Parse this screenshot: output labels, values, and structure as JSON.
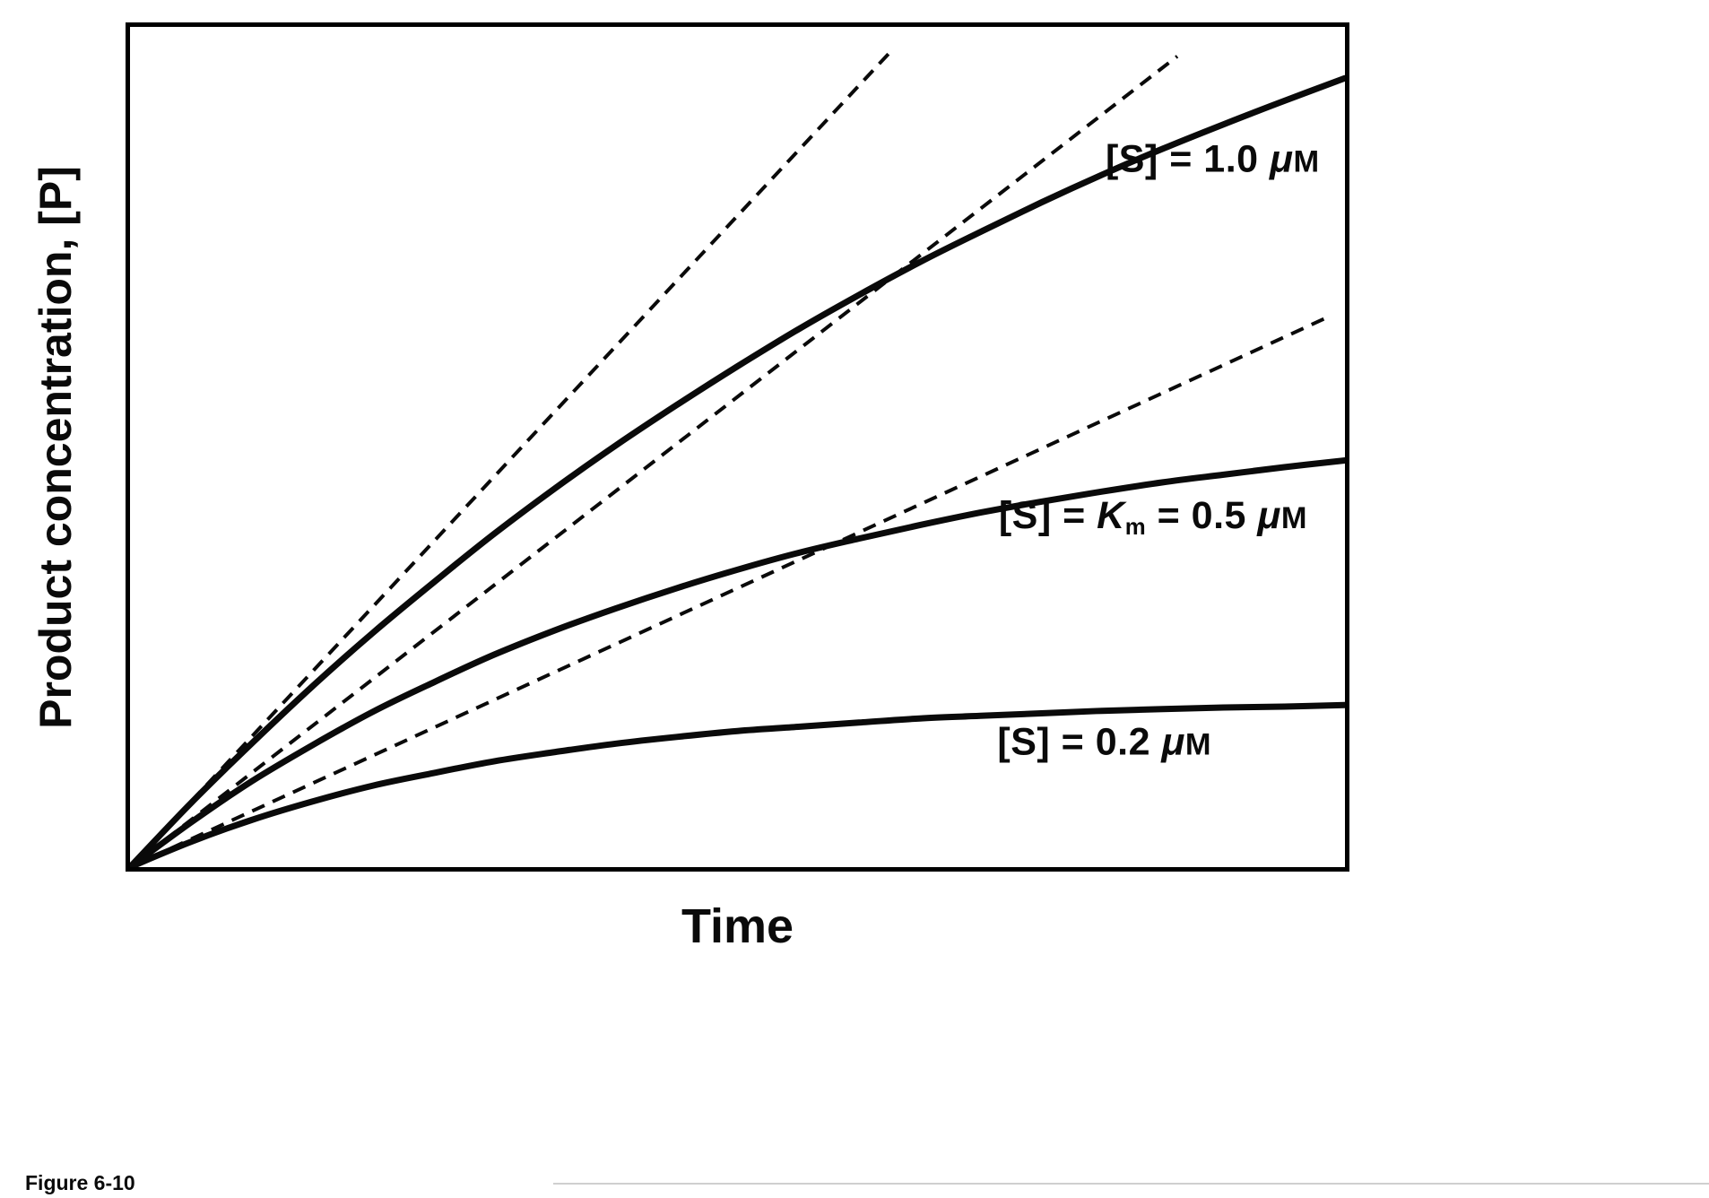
{
  "figure": {
    "caption": "Figure 6-10"
  },
  "chart_data": {
    "type": "line",
    "title": "",
    "xlabel": "Time",
    "ylabel": "Product concentration, [P]",
    "x_range": [
      0,
      1
    ],
    "y_range": [
      0,
      1
    ],
    "grid": false,
    "tick_labels": "none",
    "legend_position": "labels-on-plot",
    "series": [
      {
        "name": "[S] = 1.0 μM",
        "initial_rate": 1.55,
        "line_style": "solid",
        "label_pos": {
          "fx": 0.891,
          "fy": 0.158
        },
        "label_segments": [
          {
            "text": "[S] = 1.0 ",
            "style": "b"
          },
          {
            "text": "μ",
            "style": "bi"
          },
          {
            "text": "M",
            "style": "sc"
          }
        ],
        "points": [
          [
            0,
            0
          ],
          [
            0.05,
            0.076
          ],
          [
            0.1,
            0.147
          ],
          [
            0.15,
            0.215
          ],
          [
            0.2,
            0.279
          ],
          [
            0.25,
            0.339
          ],
          [
            0.3,
            0.397
          ],
          [
            0.35,
            0.451
          ],
          [
            0.4,
            0.502
          ],
          [
            0.45,
            0.55
          ],
          [
            0.5,
            0.596
          ],
          [
            0.55,
            0.64
          ],
          [
            0.6,
            0.681
          ],
          [
            0.65,
            0.72
          ],
          [
            0.7,
            0.756
          ],
          [
            0.75,
            0.791
          ],
          [
            0.8,
            0.824
          ],
          [
            0.85,
            0.855
          ],
          [
            0.9,
            0.884
          ],
          [
            0.95,
            0.912
          ],
          [
            1,
            0.939
          ]
        ]
      },
      {
        "name": "[S] = Km = 0.5 μM",
        "initial_rate": 1.12,
        "line_style": "solid",
        "label_pos": {
          "fx": 0.842,
          "fy": 0.584
        },
        "label_segments": [
          {
            "text": "[S] = ",
            "style": "b"
          },
          {
            "text": "K",
            "style": "bi"
          },
          {
            "text": "m",
            "style": "sub"
          },
          {
            "text": " = 0.5 ",
            "style": "b"
          },
          {
            "text": "μ",
            "style": "bi"
          },
          {
            "text": "M",
            "style": "sc"
          }
        ],
        "points": [
          [
            0,
            0
          ],
          [
            0.05,
            0.053
          ],
          [
            0.1,
            0.102
          ],
          [
            0.15,
            0.145
          ],
          [
            0.2,
            0.185
          ],
          [
            0.25,
            0.22
          ],
          [
            0.3,
            0.253
          ],
          [
            0.35,
            0.282
          ],
          [
            0.4,
            0.308
          ],
          [
            0.45,
            0.332
          ],
          [
            0.5,
            0.354
          ],
          [
            0.55,
            0.374
          ],
          [
            0.6,
            0.391
          ],
          [
            0.65,
            0.407
          ],
          [
            0.7,
            0.422
          ],
          [
            0.75,
            0.435
          ],
          [
            0.8,
            0.447
          ],
          [
            0.85,
            0.458
          ],
          [
            0.9,
            0.467
          ],
          [
            0.95,
            0.476
          ],
          [
            1,
            0.484
          ]
        ]
      },
      {
        "name": "[S] = 0.2 μM",
        "initial_rate": 0.66,
        "line_style": "solid",
        "label_pos": {
          "fx": 0.802,
          "fy": 0.852
        },
        "label_segments": [
          {
            "text": "[S] = 0.2 ",
            "style": "b"
          },
          {
            "text": "μ",
            "style": "bi"
          },
          {
            "text": "M",
            "style": "sc"
          }
        ],
        "points": [
          [
            0,
            0
          ],
          [
            0.05,
            0.03
          ],
          [
            0.1,
            0.056
          ],
          [
            0.15,
            0.078
          ],
          [
            0.2,
            0.097
          ],
          [
            0.25,
            0.112
          ],
          [
            0.3,
            0.126
          ],
          [
            0.35,
            0.137
          ],
          [
            0.4,
            0.147
          ],
          [
            0.45,
            0.155
          ],
          [
            0.5,
            0.162
          ],
          [
            0.55,
            0.167
          ],
          [
            0.6,
            0.172
          ],
          [
            0.65,
            0.177
          ],
          [
            0.7,
            0.18
          ],
          [
            0.75,
            0.183
          ],
          [
            0.8,
            0.186
          ],
          [
            0.85,
            0.188
          ],
          [
            0.9,
            0.19
          ],
          [
            0.95,
            0.191
          ],
          [
            1,
            0.193
          ]
        ]
      }
    ],
    "initial_rate_tangents": [
      {
        "for_series": "[S] = 1.0 μM",
        "slope": 1.55,
        "x": [
          0,
          0.625
        ],
        "y": [
          0,
          0.969
        ]
      },
      {
        "for_series": "[S] = Km = 0.5 μM",
        "slope": 1.12,
        "x": [
          0,
          0.862
        ],
        "y": [
          0,
          0.965
        ]
      },
      {
        "for_series": "[S] = 0.2 μM",
        "slope": 0.66,
        "x": [
          0,
          0.985
        ],
        "y": [
          0,
          0.654
        ]
      }
    ]
  }
}
